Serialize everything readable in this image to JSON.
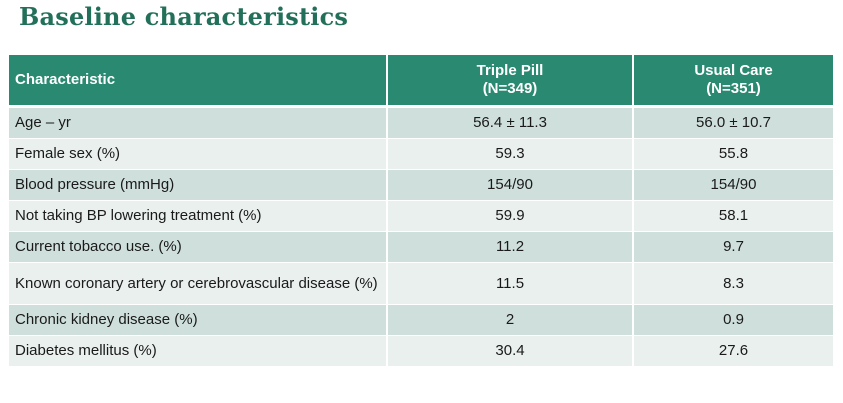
{
  "slide": {
    "title": "Baseline characteristics"
  },
  "table": {
    "headers": {
      "characteristic": "Characteristic",
      "group1_line1": "Triple Pill",
      "group1_line2": "(N=349)",
      "group2_line1": "Usual Care",
      "group2_line2": "(N=351)"
    },
    "rows": [
      {
        "label": "Age – yr",
        "triple_pill": "56.4 ± 11.3",
        "usual_care": "56.0 ± 10.7"
      },
      {
        "label": "Female sex (%)",
        "triple_pill": "59.3",
        "usual_care": "55.8"
      },
      {
        "label": "Blood pressure (mmHg)",
        "triple_pill": "154/90",
        "usual_care": "154/90"
      },
      {
        "label": "Not taking BP lowering treatment (%)",
        "triple_pill": "59.9",
        "usual_care": "58.1"
      },
      {
        "label": "Current tobacco use. (%)",
        "triple_pill": "11.2",
        "usual_care": "9.7"
      },
      {
        "label": "Known coronary artery or cerebrovascular disease (%)",
        "triple_pill": "11.5",
        "usual_care": "8.3"
      },
      {
        "label": "Chronic kidney disease (%)",
        "triple_pill": "2",
        "usual_care": "0.9"
      },
      {
        "label": "Diabetes mellitus (%)",
        "triple_pill": "30.4",
        "usual_care": "27.6"
      }
    ]
  },
  "colors": {
    "title": "#23705a",
    "header_bg": "#2a8a71",
    "row_dark": "#cfe0dc",
    "row_light": "#e9f0ee"
  }
}
